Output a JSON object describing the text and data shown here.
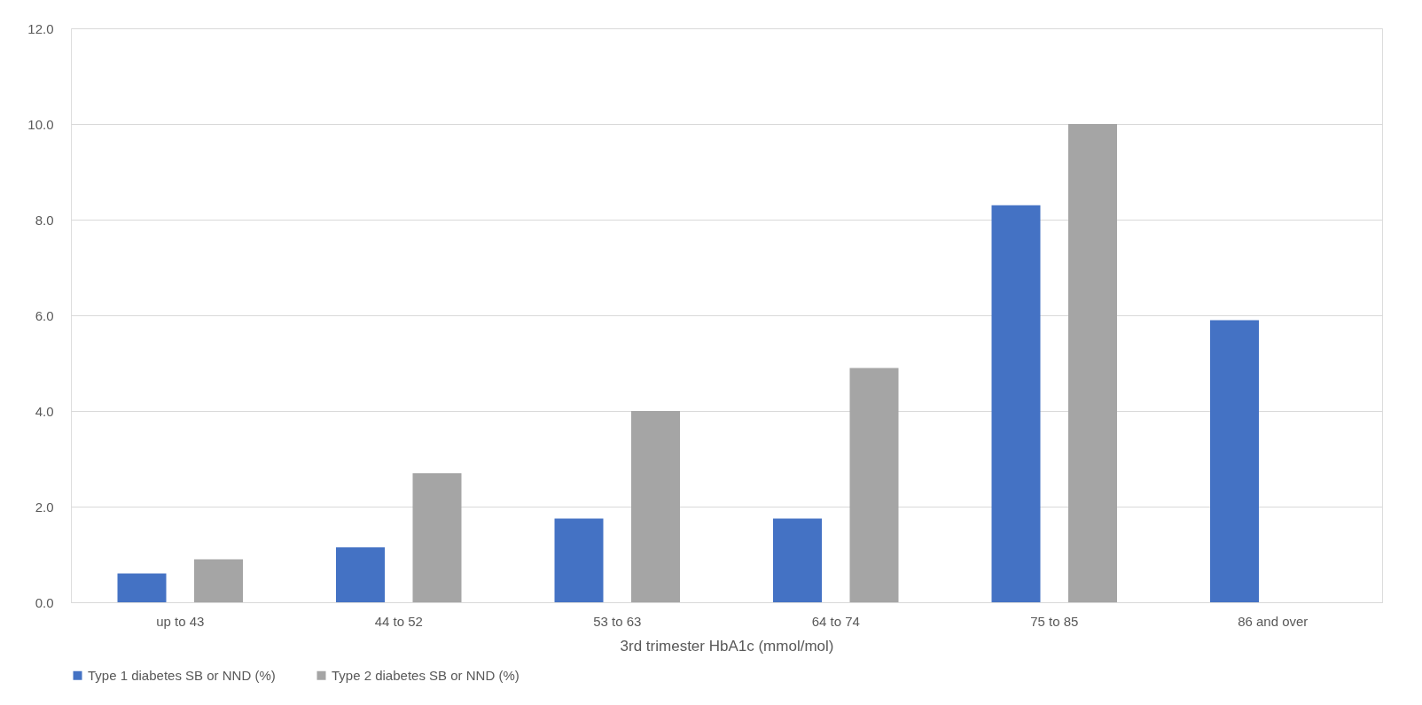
{
  "chart_data": {
    "type": "bar",
    "xlabel": "3rd trimester HbA1c (mmol/mol)",
    "categories": [
      "up to 43",
      "44 to 52",
      "53 to 63",
      "64 to 74",
      "75 to 85",
      "86 and over"
    ],
    "series": [
      {
        "name": "Type 1 diabetes  SB or NND (%)",
        "color": "#4472c4",
        "values": [
          0.6,
          1.15,
          1.75,
          1.75,
          8.3,
          5.9
        ]
      },
      {
        "name": "Type 2 diabetes  SB or NND (%)",
        "color": "#a5a5a5",
        "values": [
          0.9,
          2.7,
          4.0,
          4.9,
          10.0,
          null
        ]
      }
    ],
    "ylim": [
      0,
      12
    ],
    "yticks": [
      {
        "value": 0,
        "label": "0.0"
      },
      {
        "value": 2,
        "label": "2.0"
      },
      {
        "value": 4,
        "label": "4.0"
      },
      {
        "value": 6,
        "label": "6.0"
      },
      {
        "value": 8,
        "label": "8.0"
      },
      {
        "value": 10,
        "label": "10.0"
      },
      {
        "value": 12,
        "label": "12.0"
      }
    ],
    "grid": "y",
    "legend": "bottom"
  }
}
